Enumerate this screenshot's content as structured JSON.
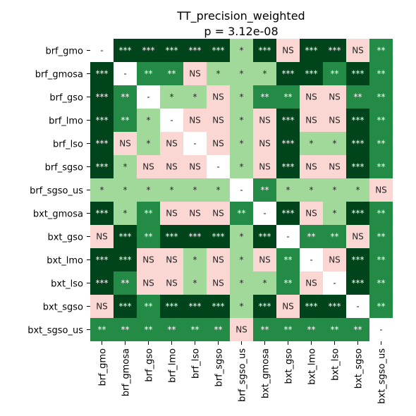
{
  "chart_data": {
    "type": "heatmap",
    "title": "TT_precision_weighted",
    "subtitle": "p = 3.12e-08",
    "labels": [
      "brf_gmo",
      "brf_gmosa",
      "brf_gso",
      "brf_lmo",
      "brf_lso",
      "brf_sgso",
      "brf_sgso_us",
      "bxt_gmosa",
      "bxt_gso",
      "bxt_lmo",
      "bxt_lso",
      "bxt_sgso",
      "bxt_sgso_us"
    ],
    "matrix": [
      [
        "-",
        "***",
        "***",
        "***",
        "***",
        "***",
        "*",
        "***",
        "NS",
        "***",
        "***",
        "NS",
        "**"
      ],
      [
        "***",
        "-",
        "**",
        "**",
        "NS",
        "*",
        "*",
        "*",
        "***",
        "***",
        "**",
        "***",
        "**"
      ],
      [
        "***",
        "**",
        "-",
        "*",
        "*",
        "NS",
        "*",
        "**",
        "**",
        "NS",
        "NS",
        "**",
        "**"
      ],
      [
        "***",
        "**",
        "*",
        "-",
        "NS",
        "NS",
        "*",
        "NS",
        "***",
        "NS",
        "NS",
        "***",
        "**"
      ],
      [
        "***",
        "NS",
        "*",
        "NS",
        "-",
        "NS",
        "*",
        "NS",
        "***",
        "*",
        "*",
        "***",
        "**"
      ],
      [
        "***",
        "*",
        "NS",
        "NS",
        "NS",
        "-",
        "*",
        "NS",
        "***",
        "NS",
        "NS",
        "***",
        "**"
      ],
      [
        "*",
        "*",
        "*",
        "*",
        "*",
        "*",
        "-",
        "**",
        "*",
        "*",
        "*",
        "*",
        "NS"
      ],
      [
        "***",
        "*",
        "**",
        "NS",
        "NS",
        "NS",
        "**",
        "-",
        "***",
        "NS",
        "*",
        "***",
        "**"
      ],
      [
        "NS",
        "***",
        "**",
        "***",
        "***",
        "***",
        "*",
        "***",
        "-",
        "**",
        "**",
        "NS",
        "**"
      ],
      [
        "***",
        "***",
        "NS",
        "NS",
        "*",
        "NS",
        "*",
        "NS",
        "**",
        "-",
        "NS",
        "***",
        "**"
      ],
      [
        "***",
        "**",
        "NS",
        "NS",
        "*",
        "NS",
        "*",
        "*",
        "**",
        "NS",
        "-",
        "***",
        "**"
      ],
      [
        "NS",
        "***",
        "**",
        "***",
        "***",
        "***",
        "*",
        "***",
        "NS",
        "***",
        "***",
        "-",
        "**"
      ],
      [
        "**",
        "**",
        "**",
        "**",
        "**",
        "**",
        "NS",
        "**",
        "**",
        "**",
        "**",
        "**",
        "-"
      ]
    ],
    "colors": {
      "***": "#00441b",
      "**": "#238b45",
      "*": "#a1d99b",
      "NS": "#fbd7d4",
      "-": "#ffffff"
    },
    "text_colors": {
      "***": "#ffffff",
      "**": "#ffffff",
      "*": "#262626",
      "NS": "#262626",
      "-": "#262626"
    }
  }
}
